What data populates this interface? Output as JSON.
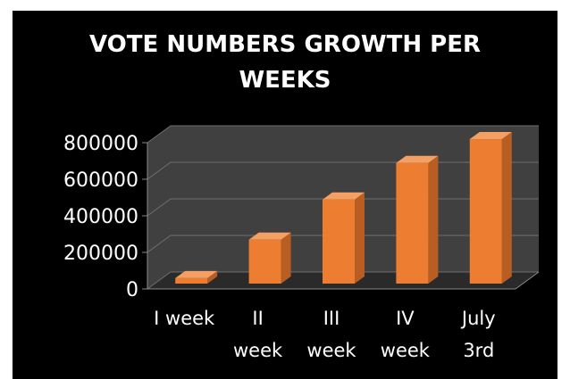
{
  "chart_data": {
    "type": "bar",
    "style": "3d-column",
    "title_lines": [
      "VOTE NUMBERS GROWTH PER",
      "WEEKS"
    ],
    "categories": [
      [
        "I week"
      ],
      [
        "II",
        "week"
      ],
      [
        "III",
        "week"
      ],
      [
        "IV",
        "week"
      ],
      [
        "July",
        "3rd"
      ]
    ],
    "values": [
      30000,
      240000,
      460000,
      660000,
      790000
    ],
    "ylim": [
      0,
      800000
    ],
    "yticks": [
      0,
      200000,
      400000,
      600000,
      800000
    ],
    "grid": true,
    "legend": "none",
    "colors": {
      "background": "#000000",
      "bar_front": "#ed7d31",
      "bar_side": "#b85e22",
      "bar_top": "#f4a064",
      "wall": "#404040",
      "floor": "#2a2a2a",
      "gridline": "#6e6e6e",
      "axis": "#8a8a8a",
      "text": "#ffffff"
    }
  }
}
